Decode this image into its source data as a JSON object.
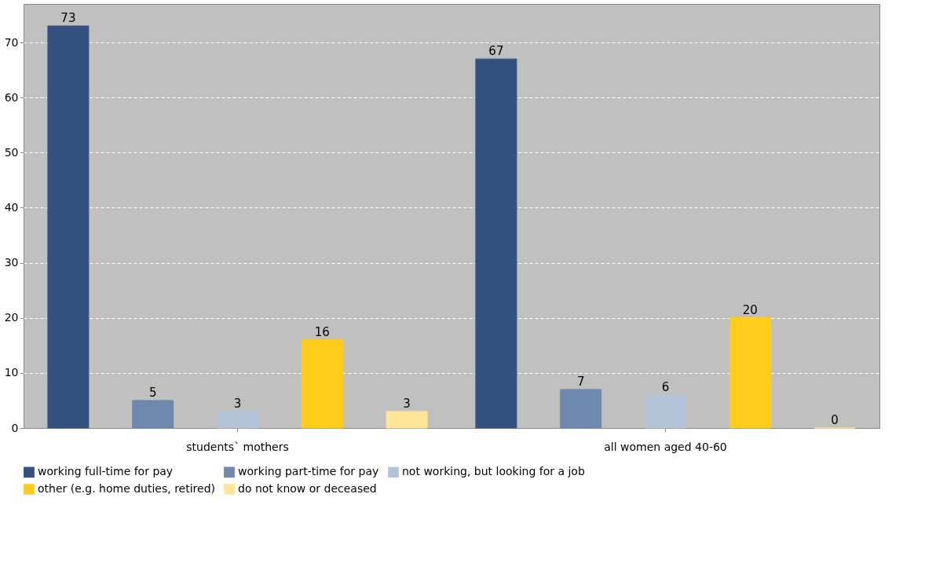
{
  "chart_data": {
    "type": "bar",
    "categories": [
      "students` mothers",
      "all women aged 40-60"
    ],
    "series": [
      {
        "name": "working full-time for pay",
        "color": "#34517f",
        "values": [
          73,
          67
        ]
      },
      {
        "name": "working part-time for pay",
        "color": "#6f88ad",
        "values": [
          5,
          7
        ]
      },
      {
        "name": "not working, but looking for a job",
        "color": "#b3c3d8",
        "values": [
          3,
          6
        ]
      },
      {
        "name": "other (e.g. home duties, retired)",
        "color": "#ffcc1a",
        "values": [
          16,
          20
        ]
      },
      {
        "name": "do not know or deceased",
        "color": "#ffe597",
        "values": [
          3,
          0
        ]
      }
    ],
    "ylim": [
      0,
      77
    ],
    "yticks": [
      0,
      10,
      20,
      30,
      40,
      50,
      60,
      70
    ],
    "grid": "y",
    "legend": "bottom",
    "data_labels": true
  }
}
